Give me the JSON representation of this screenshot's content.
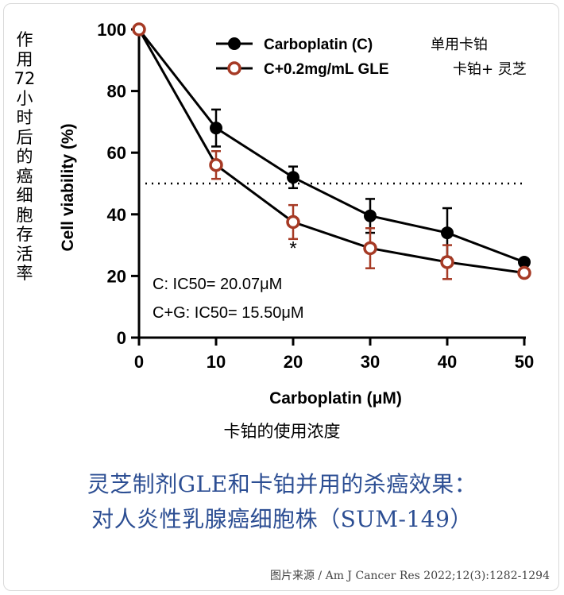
{
  "y_side_label": "作用72小时后的癌细胞存活率",
  "x_side_label": "卡铂的使用浓度",
  "caption": {
    "line1": "灵芝制剂GLE和卡铂并用的杀癌效果：",
    "line2": "对人炎性乳腺癌细胞株（SUM-149）"
  },
  "source": "图片来源 / Am J Cancer Res 2022;12(3):1282-1294",
  "chart_data": {
    "type": "line",
    "x": [
      0,
      10,
      20,
      30,
      40,
      50
    ],
    "xlabel": "Carboplatin (μM)",
    "ylabel": "Cell viability (%)",
    "xlim": [
      0,
      50
    ],
    "ylim": [
      0,
      100
    ],
    "xticks": [
      "0",
      "10",
      "20",
      "30",
      "40",
      "50"
    ],
    "yticks": [
      "0",
      "20",
      "40",
      "60",
      "80",
      "100"
    ],
    "grid": false,
    "legend_position": "top-right",
    "reference_line": {
      "y": 50,
      "style": "dotted"
    },
    "series": [
      {
        "name": "Carboplatin (C)",
        "name_cn": "单用卡铂",
        "marker": "filled-circle",
        "color": "#000000",
        "values": [
          100,
          68,
          52,
          39.5,
          34,
          24.5
        ],
        "error": [
          0,
          6,
          3.5,
          5.5,
          8,
          0
        ]
      },
      {
        "name": "C+0.2mg/mL GLE",
        "name_cn": "卡铂+ 灵芝",
        "marker": "open-circle",
        "color": "#a63a25",
        "values": [
          100,
          56,
          37.5,
          29,
          24.5,
          21
        ],
        "error": [
          0,
          4.5,
          5.5,
          6.5,
          5.5,
          0
        ]
      }
    ],
    "annotations": [
      {
        "text": "*",
        "x": 20,
        "y": 28
      },
      {
        "text": "C: IC50= 20.07μM"
      },
      {
        "text": "C+G: IC50= 15.50μM"
      }
    ]
  }
}
